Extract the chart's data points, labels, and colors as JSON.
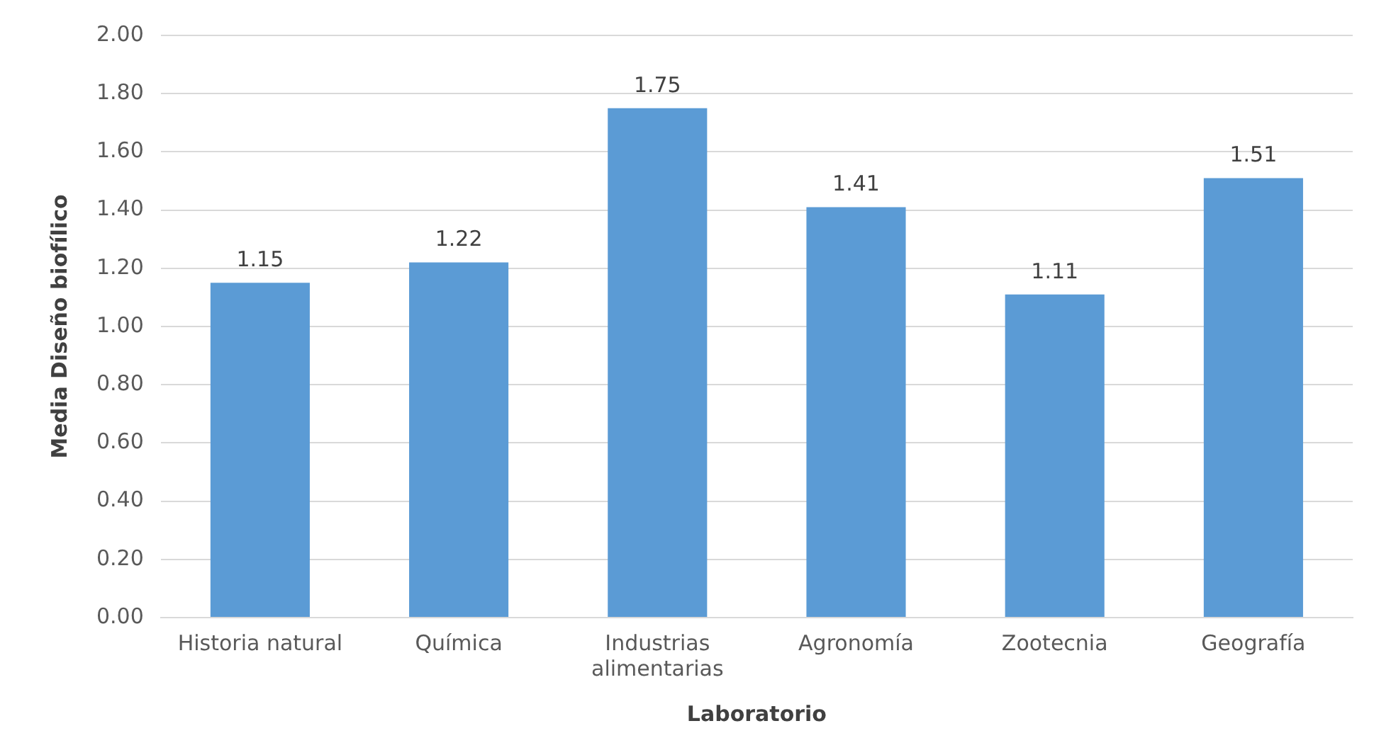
{
  "chart_data": {
    "type": "bar",
    "xlabel": "Laboratorio",
    "ylabel": "Media Diseño biofílico",
    "categories": [
      "Historia natural",
      "Química",
      "Industrias alimentarias",
      "Agronomía",
      "Zootecnia",
      "Geografía"
    ],
    "values": [
      1.15,
      1.22,
      1.75,
      1.41,
      1.11,
      1.51
    ],
    "color": "#5b9bd5",
    "ylim": [
      0,
      2
    ],
    "yticks": [
      {
        "value": 0,
        "label": "0.00"
      },
      {
        "value": 0.2,
        "label": "0.20"
      },
      {
        "value": 0.4,
        "label": "0.40"
      },
      {
        "value": 0.6,
        "label": "0.60"
      },
      {
        "value": 0.8,
        "label": "0.80"
      },
      {
        "value": 1,
        "label": "1.00"
      },
      {
        "value": 1.2,
        "label": "1.20"
      },
      {
        "value": 1.4,
        "label": "1.40"
      },
      {
        "value": 1.6,
        "label": "1.60"
      },
      {
        "value": 1.8,
        "label": "1.80"
      },
      {
        "value": 2,
        "label": "2.00"
      }
    ],
    "grid": "y",
    "legend": false,
    "data_labels": true
  }
}
